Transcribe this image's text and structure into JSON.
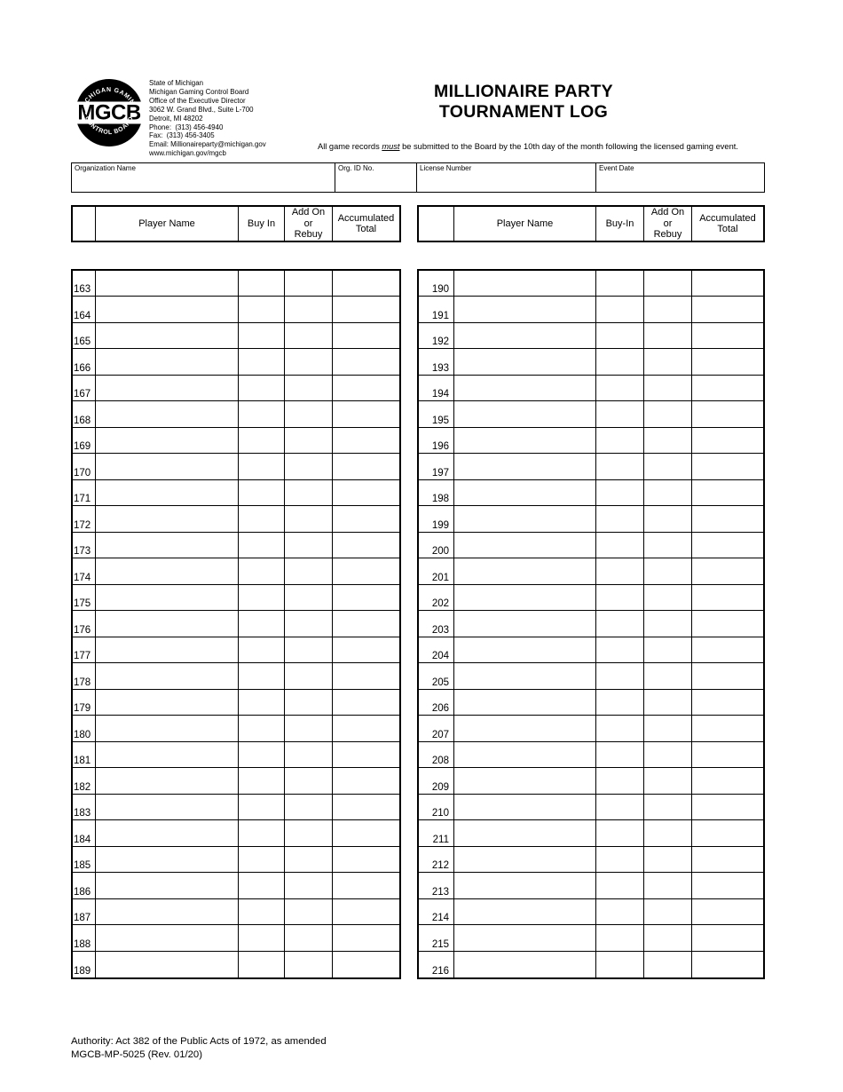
{
  "colors": {
    "ink": "#000000",
    "paper": "#ffffff"
  },
  "logo": {
    "acronym": "MGCB",
    "arc_top": "MICHIGAN GAMING",
    "arc_bottom": "• CONTROL BOARD •"
  },
  "agency": {
    "lines": [
      "State of Michigan",
      "Michigan Gaming Control Board",
      "Office of the Executive Director",
      "3062 W. Grand Blvd., Suite L-700",
      "Detroit, MI 48202",
      "Phone:  (313) 456-4940",
      "Fax:  (313) 456-3405",
      "Email: Millionaireparty@michigan.gov",
      "www.michigan.gov/mgcb"
    ]
  },
  "header": {
    "title_line1": "MILLIONAIRE PARTY",
    "title_line2": "TOURNAMENT LOG",
    "note_prefix": "All game records ",
    "note_emphasis": "must",
    "note_suffix": " be submitted to the Board by the 10th day of the month following the licensed gaming event."
  },
  "info_fields": [
    {
      "label": "Organization Name",
      "value": ""
    },
    {
      "label": "Org. ID No.",
      "value": ""
    },
    {
      "label": "License Number",
      "value": ""
    },
    {
      "label": "Event Date",
      "value": ""
    }
  ],
  "tables": [
    {
      "headers": [
        "",
        "Player Name",
        "Buy In",
        "Add On\nor\nRebuy",
        "Accumulated\nTotal"
      ],
      "row_numbers": [
        163,
        164,
        165,
        166,
        167,
        168,
        169,
        170,
        171,
        172,
        173,
        174,
        175,
        176,
        177,
        178,
        179,
        180,
        181,
        182,
        183,
        184,
        185,
        186,
        187,
        188,
        189
      ]
    },
    {
      "headers": [
        "",
        "Player Name",
        "Buy-In",
        "Add On\nor\nRebuy",
        "Accumulated\nTotal"
      ],
      "row_numbers": [
        190,
        191,
        192,
        193,
        194,
        195,
        196,
        197,
        198,
        199,
        200,
        201,
        202,
        203,
        204,
        205,
        206,
        207,
        208,
        209,
        210,
        211,
        212,
        213,
        214,
        215,
        216
      ]
    }
  ],
  "footer": {
    "authority_text": "Authority: Act 382 of the Public Acts of 1972, as amended",
    "form_number": "MGCB-MP-5025 (Rev. 01/20)"
  }
}
